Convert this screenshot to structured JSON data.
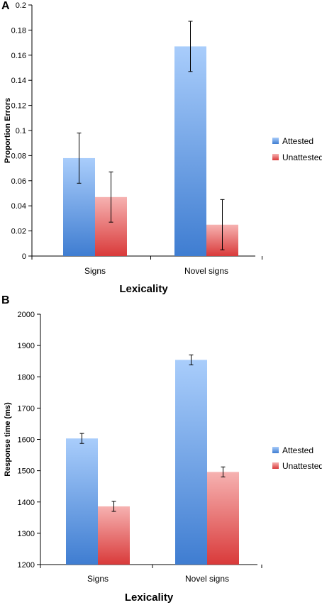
{
  "chart_data": [
    {
      "panel": "A",
      "type": "bar",
      "categories": [
        "Signs",
        "Novel signs"
      ],
      "series": [
        {
          "name": "Attested",
          "values": [
            0.078,
            0.167
          ],
          "errors": [
            0.02,
            0.02
          ],
          "color_top": "#a9cdfb",
          "color_bottom": "#3f7dd1"
        },
        {
          "name": "Unattested",
          "values": [
            0.047,
            0.025
          ],
          "errors": [
            0.02,
            0.02
          ],
          "color_top": "#f6b2b1",
          "color_bottom": "#d93a3a"
        }
      ],
      "xlabel": "Lexicality",
      "ylabel": "Proportion Errors",
      "ylim": [
        0,
        0.2
      ],
      "yticks": [
        0,
        0.02,
        0.04,
        0.06,
        0.08,
        0.1,
        0.12,
        0.14,
        0.16,
        0.18,
        0.2
      ],
      "ytick_labels": [
        "0",
        "0.02",
        "0.04",
        "0.06",
        "0.08",
        "0.1",
        "0.12",
        "0.14",
        "0.16",
        "0.18",
        "0.2"
      ],
      "legend_position": "right",
      "grid": false
    },
    {
      "panel": "B",
      "type": "bar",
      "categories": [
        "Signs",
        "Novel signs"
      ],
      "series": [
        {
          "name": "Attested",
          "values": [
            1603,
            1854
          ],
          "errors": [
            16,
            16
          ],
          "color_top": "#a9cdfb",
          "color_bottom": "#3f7dd1"
        },
        {
          "name": "Unattested",
          "values": [
            1386,
            1496
          ],
          "errors": [
            16,
            16
          ],
          "color_top": "#f6b2b1",
          "color_bottom": "#d93a3a"
        }
      ],
      "xlabel": "Lexicality",
      "ylabel": "Response time (ms)",
      "ylim": [
        1200,
        2000
      ],
      "yticks": [
        1200,
        1300,
        1400,
        1500,
        1600,
        1700,
        1800,
        1900,
        2000
      ],
      "ytick_labels": [
        "1200",
        "1300",
        "1400",
        "1500",
        "1600",
        "1700",
        "1800",
        "1900",
        "2000"
      ],
      "legend_position": "right",
      "grid": false
    }
  ]
}
